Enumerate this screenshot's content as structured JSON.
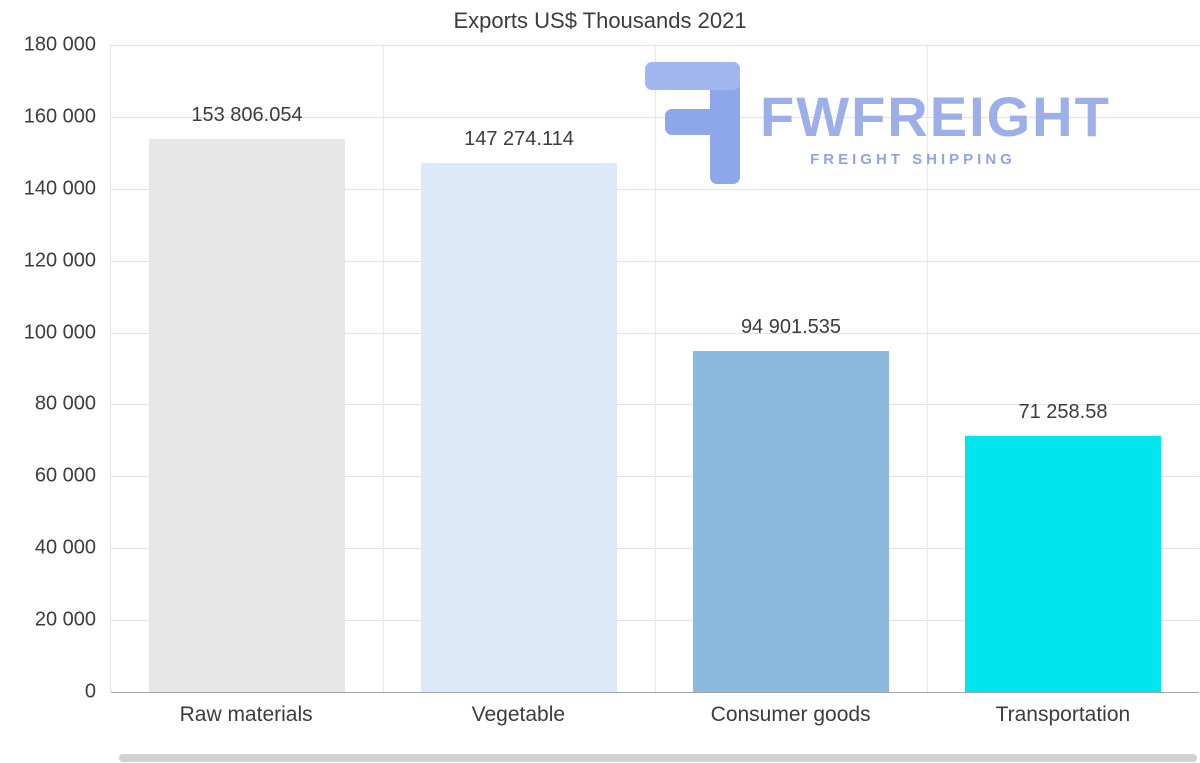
{
  "chart": {
    "title": "Exports US$ Thousands 2021"
  },
  "watermark": {
    "brand": "FWFREIGHT",
    "tagline": "FREIGHT SHIPPING",
    "icon_color": "#8da7ea",
    "icon_accent_color": "#a2b6ef",
    "text_color": "#9cafe9"
  },
  "chart_data": {
    "type": "bar",
    "title": "Exports US$ Thousands 2021",
    "categories": [
      "Raw materials",
      "Vegetable",
      "Consumer goods",
      "Transportation"
    ],
    "values": [
      153806.054,
      147274.114,
      94901.535,
      71258.58
    ],
    "value_labels": [
      "153 806.054",
      "147 274.114",
      "94 901.535",
      "71 258.58"
    ],
    "bar_colors": [
      "#e7e7e7",
      "#dbe9f8",
      "#8cb9de",
      "#00e6ee"
    ],
    "xlabel": "",
    "ylabel": "",
    "ylim": [
      0,
      180000
    ],
    "y_ticks": [
      {
        "value": 180000,
        "label": "180 000"
      },
      {
        "value": 160000,
        "label": "160 000"
      },
      {
        "value": 140000,
        "label": "140 000"
      },
      {
        "value": 120000,
        "label": "120 000"
      },
      {
        "value": 100000,
        "label": "100 000"
      },
      {
        "value": 80000,
        "label": "80 000"
      },
      {
        "value": 60000,
        "label": "60 000"
      },
      {
        "value": 40000,
        "label": "40 000"
      },
      {
        "value": 20000,
        "label": "20 000"
      },
      {
        "value": 0,
        "label": "0"
      }
    ],
    "grid": "horizontal gridlines at each y tick, vertical gridlines at category band boundaries",
    "legend": "none"
  }
}
